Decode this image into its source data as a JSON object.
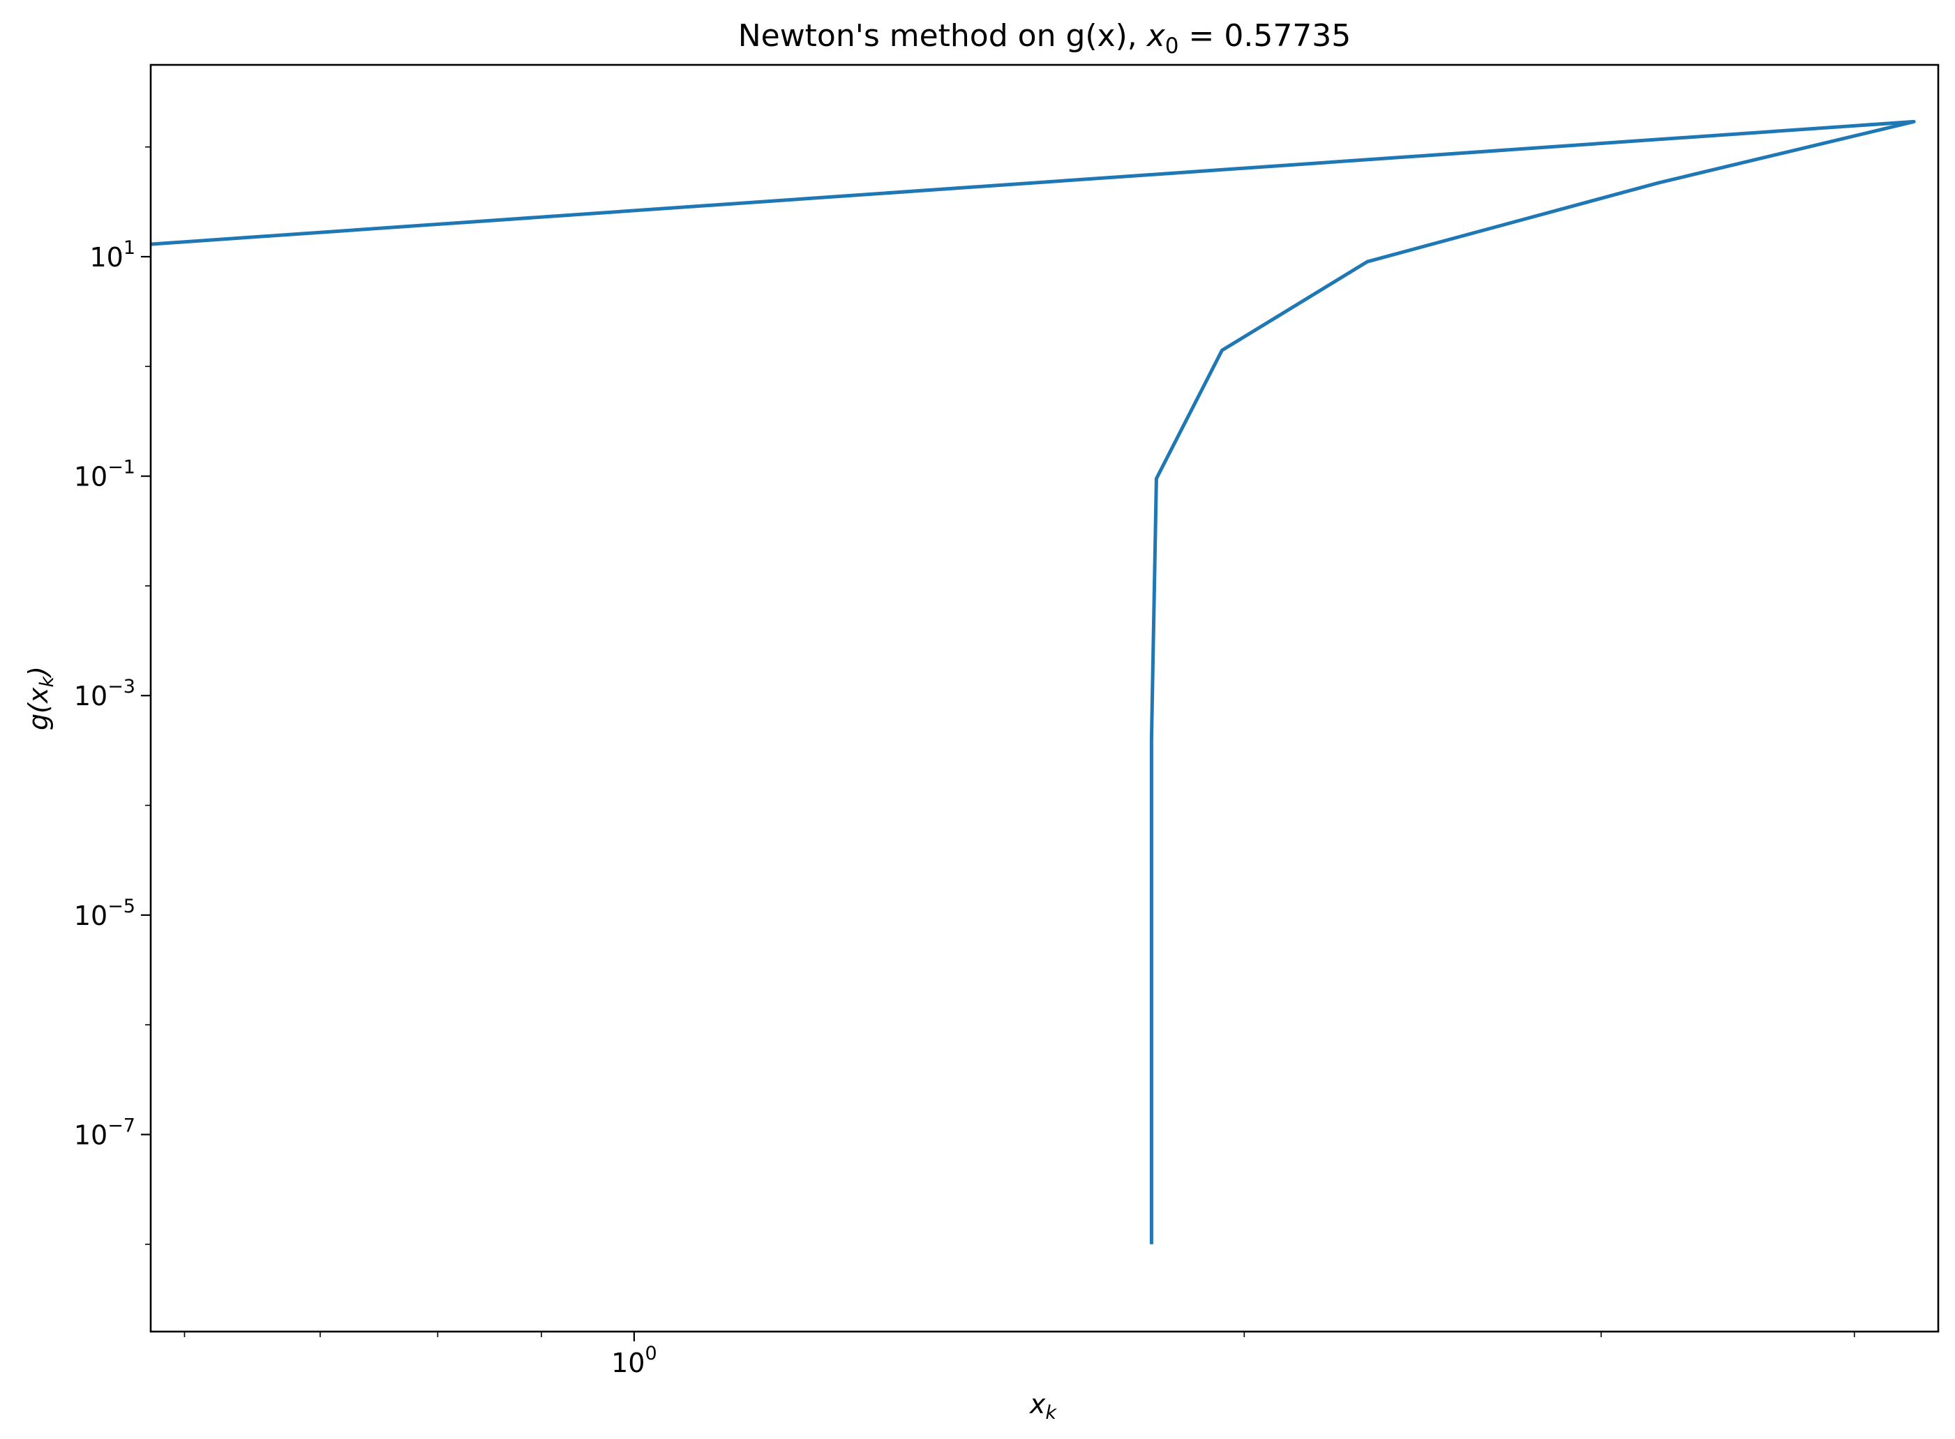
{
  "chart_data": {
    "type": "line",
    "title": {
      "prefix": "Newton's method on g(x), ",
      "var": "x",
      "sub": "0",
      "suffix": " = 0.57735"
    },
    "xlabel": {
      "var": "x",
      "sub": "k"
    },
    "ylabel": {
      "open": "g(",
      "var": "x",
      "sub": "k",
      "close": ")"
    },
    "x_scale": "log",
    "y_scale": "log",
    "xlim": [
      0.5774,
      4.4
    ],
    "ylim": [
      1.6e-09,
      560
    ],
    "x_major_ticks": [
      {
        "value": 1,
        "base": "10",
        "exp": "0"
      }
    ],
    "x_minor_ticks": [
      0.6,
      0.7,
      0.8,
      0.9,
      2,
      3,
      4
    ],
    "y_major_ticks": [
      {
        "value": 10,
        "base": "10",
        "exp": "1"
      },
      {
        "value": 0.1,
        "base": "10",
        "exp": "−1"
      },
      {
        "value": 0.001,
        "base": "10",
        "exp": "−3"
      },
      {
        "value": 1e-05,
        "base": "10",
        "exp": "−5"
      },
      {
        "value": 1e-07,
        "base": "10",
        "exp": "−7"
      }
    ],
    "grid": false,
    "series": [
      {
        "color": "#1f77b4",
        "x": [
          0.57735,
          4.28,
          3.2,
          2.3,
          1.95,
          1.81,
          1.8,
          1.8
        ],
        "y": [
          13,
          170,
          47,
          9,
          1.4,
          0.095,
          0.0004,
          1e-08
        ]
      }
    ]
  }
}
